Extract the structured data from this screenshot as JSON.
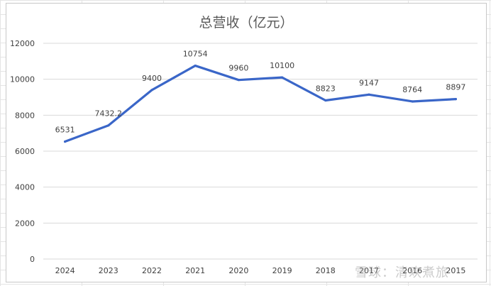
{
  "chart_data": {
    "type": "line",
    "title": "总营收（亿元）",
    "categories": [
      "2024",
      "2023",
      "2022",
      "2021",
      "2020",
      "2019",
      "2018",
      "2017",
      "2016",
      "2015"
    ],
    "series": [
      {
        "values": [
          6531,
          7432.2,
          9400,
          10754,
          9960,
          10100,
          8823,
          9147,
          8764,
          8897
        ],
        "data_labels": [
          "6531",
          "7432.2",
          "9400",
          "10754",
          "9960",
          "10100",
          "8823",
          "9147",
          "8764",
          "8897"
        ]
      }
    ],
    "xlabel": "",
    "ylabel": "",
    "ylim": [
      0,
      12000
    ],
    "yticks": [
      "0",
      "2000",
      "4000",
      "6000",
      "8000",
      "10000",
      "12000"
    ],
    "grid": true,
    "legend": "none",
    "colors": {
      "line": "#3a66c8",
      "grid": "#d9d9d9",
      "frame": "#c8c8c8"
    }
  },
  "watermark": "雪球：清欢煮旅"
}
